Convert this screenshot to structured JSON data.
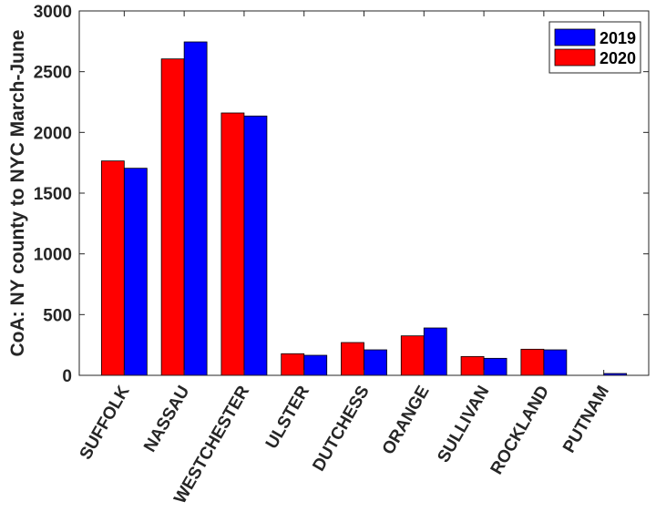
{
  "chart_data": {
    "type": "bar",
    "categories": [
      "SUFFOLK",
      "NASSAU",
      "WESTCHESTER",
      "ULSTER",
      "DUTCHESS",
      "ORANGE",
      "SULLIVAN",
      "ROCKLAND",
      "PUTNAM"
    ],
    "series": [
      {
        "name": "2020",
        "color": "#ff0000",
        "values": [
          1765,
          2605,
          2160,
          178,
          270,
          325,
          155,
          215,
          0
        ]
      },
      {
        "name": "2019",
        "color": "#0000ff",
        "values": [
          1705,
          2745,
          2135,
          165,
          210,
          390,
          140,
          210,
          15
        ]
      }
    ],
    "legend_order": [
      "2019",
      "2020"
    ],
    "title": "",
    "xlabel": "",
    "ylabel": "CoA: NY county to NYC March-June",
    "ylim": [
      0,
      3000
    ],
    "yticks": [
      0,
      500,
      1000,
      1500,
      2000,
      2500,
      3000
    ],
    "legend_position": "top-right",
    "grid": false
  }
}
